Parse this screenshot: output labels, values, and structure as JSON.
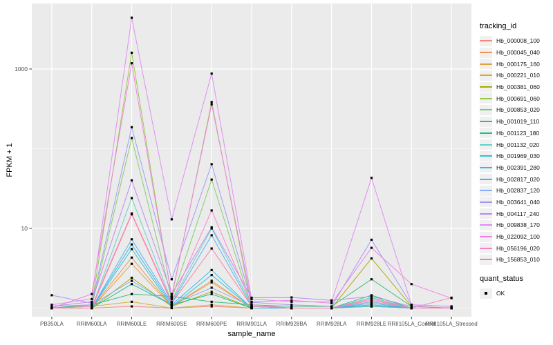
{
  "figure": {
    "background": "#FFFFFF",
    "panel_background": "#EBEBEB",
    "grid_color": "#FFFFFF",
    "tick_label_color": "#4D4D4D",
    "point_color": "#000000"
  },
  "legend": {
    "tracking_title": "tracking_id",
    "quant_title": "quant_status",
    "quant_label": "OK"
  },
  "chart_data": {
    "type": "line",
    "title": "",
    "xlabel": "sample_name",
    "ylabel": "FPKM + 1",
    "y_scale": "log10",
    "y_ticks": [
      10,
      1000
    ],
    "y_minor_gridlines": [
      1,
      100
    ],
    "legend_position": "right",
    "grid": true,
    "point_shape": "square",
    "point_color": "#000000",
    "categories": [
      "PB350LA",
      "RRIM600LA",
      "RRIM600LE",
      "RRIM600SE",
      "RRIM600PE",
      "RRIM901LA",
      "RRIM928BA",
      "RRIM928LA",
      "RRIM928LE",
      "RRII105LA_Control",
      "RRII105LA_Stressed"
    ],
    "series": [
      {
        "name": "Hb_000008_100",
        "color": "#F8847B",
        "values": [
          1,
          1,
          1.05,
          1,
          1.05,
          1,
          1,
          1,
          1.05,
          1,
          1
        ]
      },
      {
        "name": "Hb_000045_040",
        "color": "#EF9150",
        "values": [
          1,
          1,
          4.3,
          1.05,
          2.2,
          1,
          1,
          1,
          1.1,
          1,
          1
        ]
      },
      {
        "name": "Hb_000175_160",
        "color": "#E3A13D",
        "values": [
          1,
          1,
          3.6,
          1.05,
          2.1,
          1,
          1,
          1,
          1.05,
          1,
          1
        ]
      },
      {
        "name": "Hb_000221_010",
        "color": "#CFAF33",
        "values": [
          1,
          1.05,
          1.2,
          1,
          1.1,
          1,
          1,
          1,
          1.35,
          1,
          1
        ]
      },
      {
        "name": "Hb_000381_060",
        "color": "#ACA800",
        "values": [
          1,
          1,
          2.4,
          1.05,
          1.6,
          1,
          1,
          1,
          4.2,
          1.05,
          1
        ]
      },
      {
        "name": "Hb_000691_060",
        "color": "#96C746",
        "values": [
          1,
          1.1,
          1600,
          1.35,
          385,
          1.05,
          1,
          1,
          1.2,
          1,
          1
        ]
      },
      {
        "name": "Hb_000853_020",
        "color": "#7ECB66",
        "values": [
          1,
          1.05,
          136,
          1.3,
          41,
          1.05,
          1,
          1,
          1.1,
          1,
          1
        ]
      },
      {
        "name": "Hb_001019_110",
        "color": "#2FBF71",
        "values": [
          1,
          1.1,
          1.5,
          1.4,
          1.2,
          1.1,
          1.05,
          1.05,
          2.3,
          1.05,
          1
        ]
      },
      {
        "name": "Hb_001123_180",
        "color": "#16BE96",
        "values": [
          1,
          1,
          2.0,
          1.1,
          1.5,
          1,
          1,
          1,
          1.45,
          1,
          1
        ]
      },
      {
        "name": "Hb_001132_020",
        "color": "#5ED3C6",
        "values": [
          1,
          1,
          24,
          1.2,
          10,
          1.1,
          1,
          1,
          1.35,
          1,
          1
        ]
      },
      {
        "name": "Hb_001969_030",
        "color": "#2EC3D0",
        "values": [
          1,
          1,
          5.5,
          1.05,
          2.6,
          1,
          1,
          1,
          1.05,
          1,
          1
        ]
      },
      {
        "name": "Hb_002391_280",
        "color": "#31B8E8",
        "values": [
          1,
          1,
          6.3,
          1.1,
          3.0,
          1,
          1,
          1,
          1.1,
          1,
          1
        ]
      },
      {
        "name": "Hb_002817_020",
        "color": "#54AEF7",
        "values": [
          1,
          1,
          7.3,
          1.15,
          8.2,
          1.05,
          1,
          1,
          1.15,
          1,
          1
        ]
      },
      {
        "name": "Hb_002837_120",
        "color": "#86ADFB",
        "values": [
          1.05,
          1.1,
          2.2,
          1.1,
          1.8,
          1.05,
          1,
          1,
          1.2,
          1,
          1
        ]
      },
      {
        "name": "Hb_003641_040",
        "color": "#9F97F2",
        "values": [
          1.45,
          1.15,
          186,
          2.3,
          64,
          1.18,
          1.1,
          1.05,
          7.2,
          1.1,
          1.05
        ]
      },
      {
        "name": "Hb_004117_240",
        "color": "#BC86F5",
        "values": [
          1.05,
          1.2,
          40,
          1.5,
          10.3,
          1.35,
          1.36,
          1.25,
          1.4,
          1.05,
          1
        ]
      },
      {
        "name": "Hb_009838_170",
        "color": "#DF8AF2",
        "values": [
          1.1,
          1.3,
          4400,
          13,
          875,
          1.3,
          1.2,
          1.2,
          43,
          1.1,
          1.05
        ]
      },
      {
        "name": "Hb_022092_100",
        "color": "#F07FE4",
        "values": [
          1,
          1.5,
          1180,
          1.4,
          360,
          1.2,
          1.25,
          1.15,
          5.7,
          2.0,
          1.33
        ]
      },
      {
        "name": "Hb_056196_020",
        "color": "#FA7FC8",
        "values": [
          1,
          1.05,
          15.4,
          1.2,
          16.8,
          1.1,
          1,
          1,
          1.3,
          1,
          1.35
        ]
      },
      {
        "name": "Hb_156853_010",
        "color": "#FB7F9F",
        "values": [
          1,
          1,
          15.0,
          1.15,
          5.6,
          1.05,
          1,
          1,
          1.25,
          1,
          1
        ]
      }
    ]
  }
}
